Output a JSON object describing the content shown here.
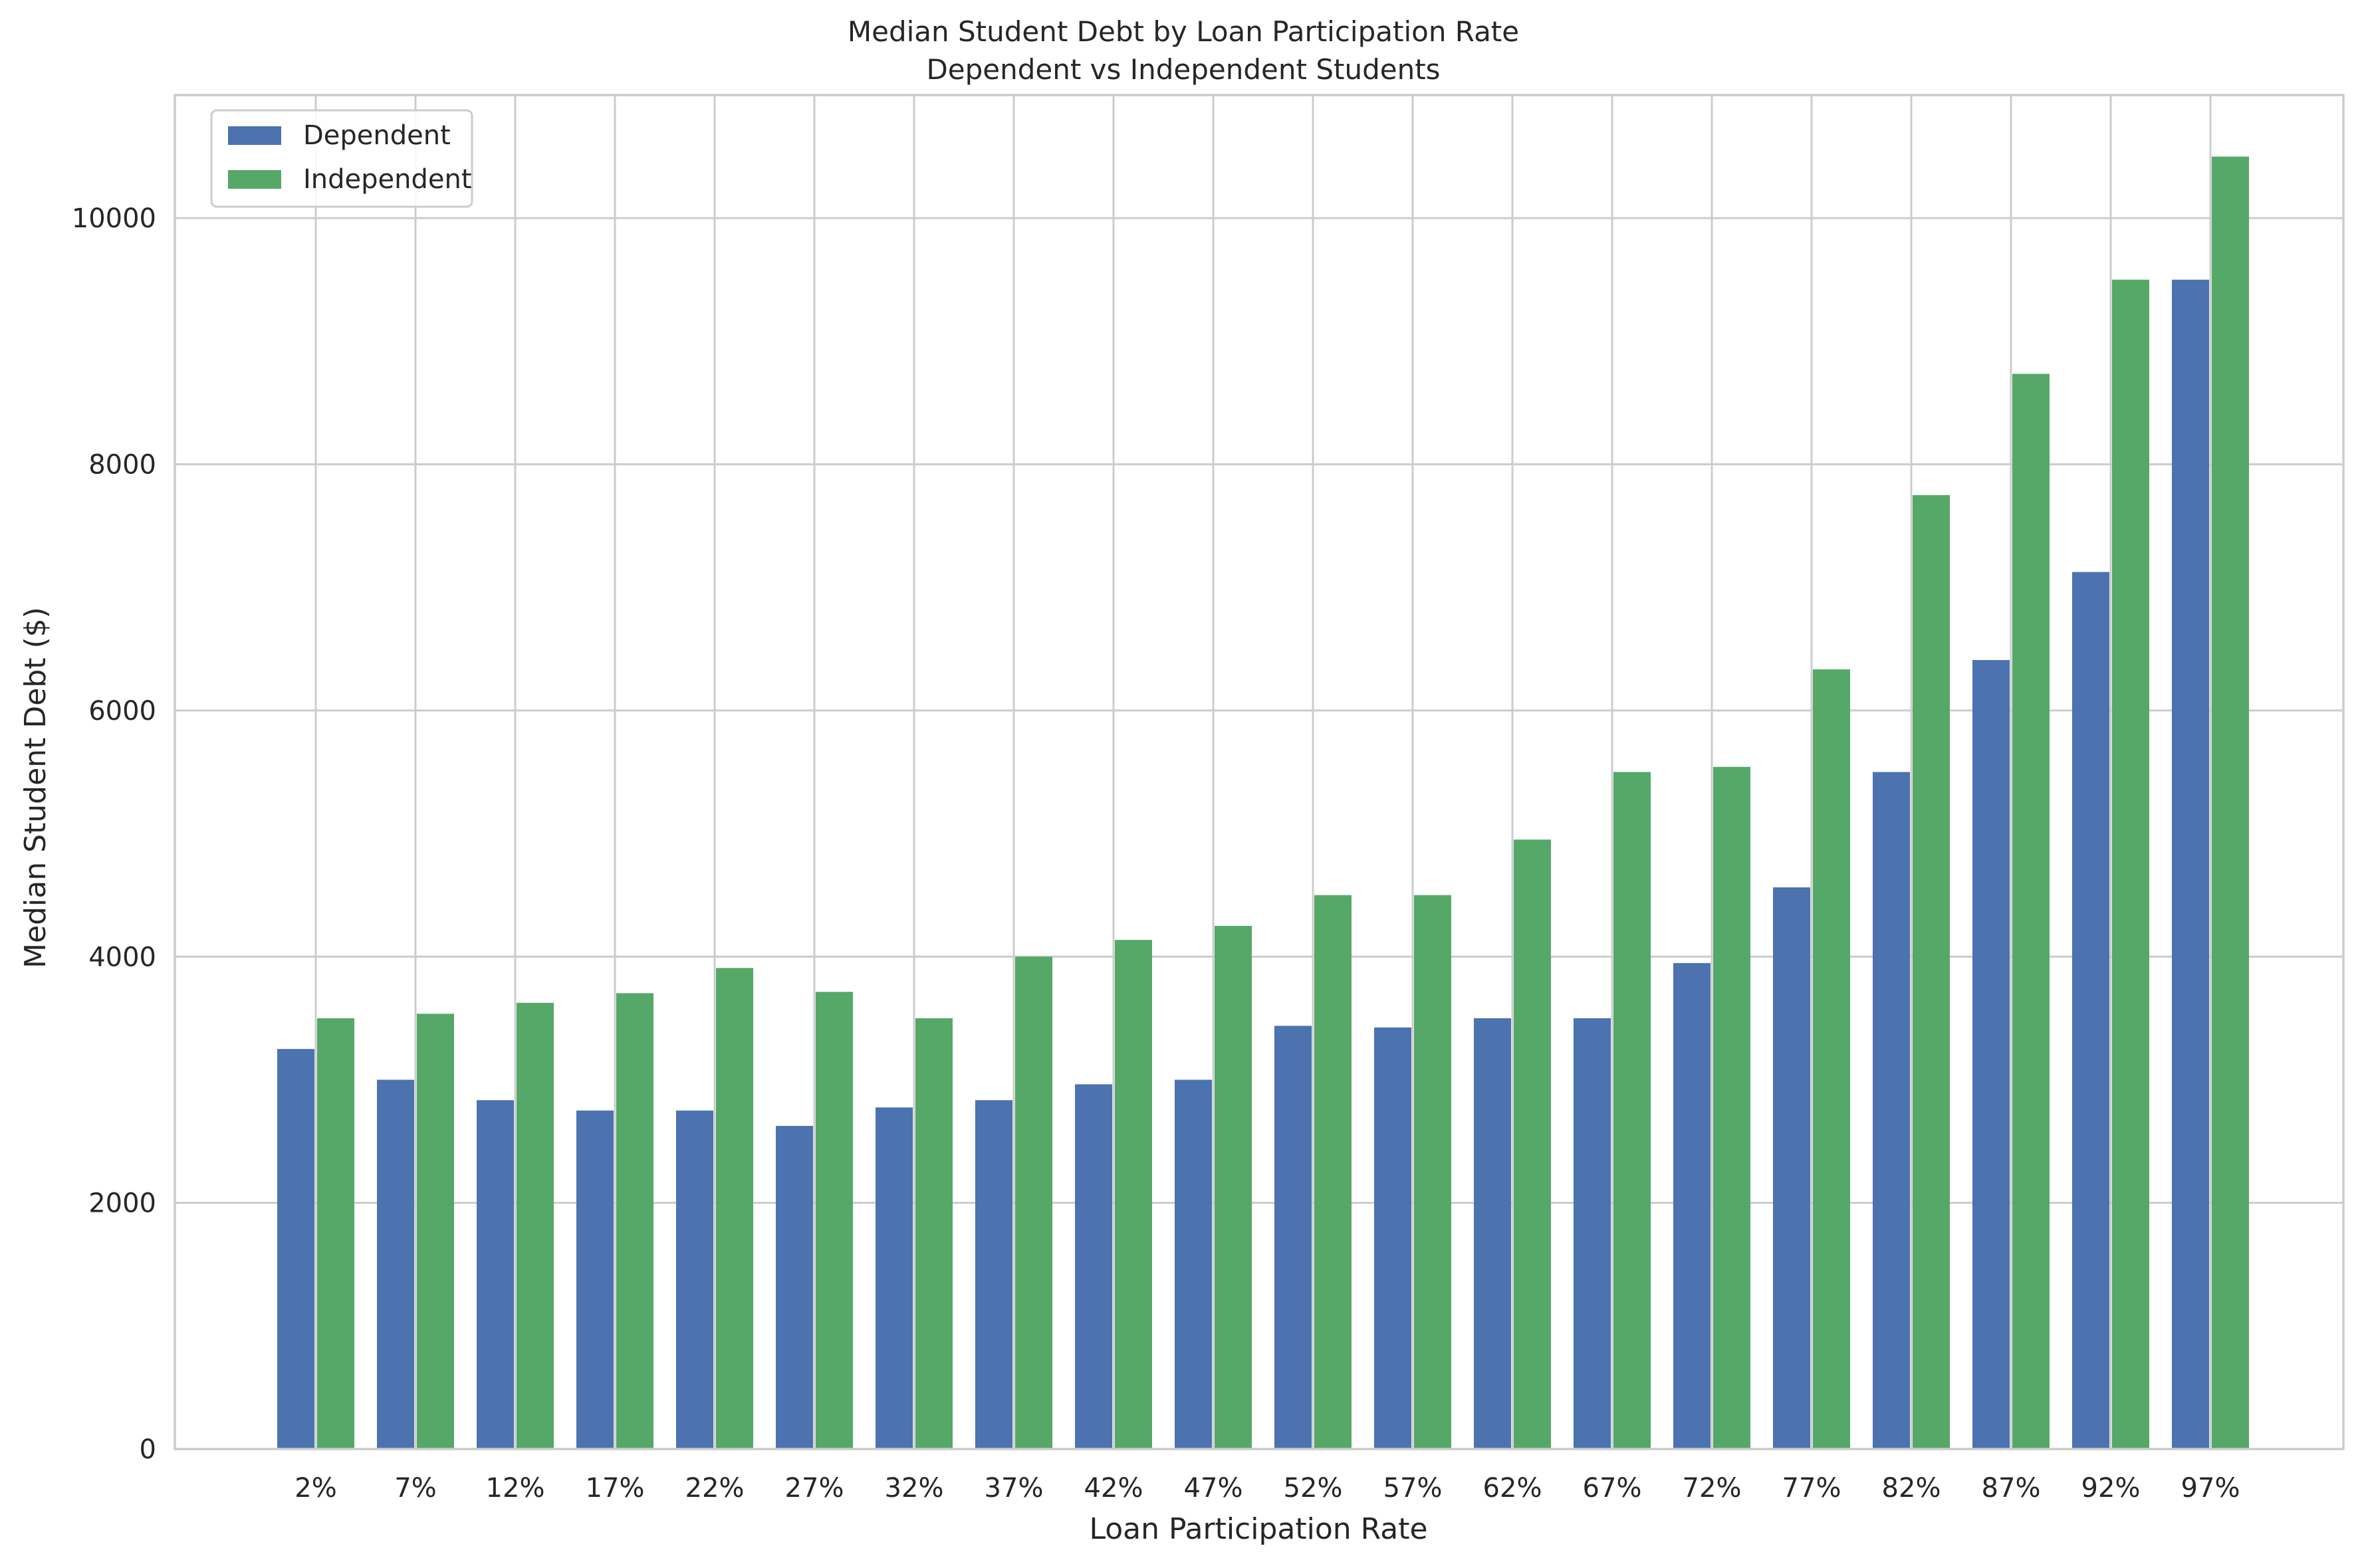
{
  "chart_data": {
    "type": "bar",
    "title": "Median Student Debt by Loan Participation Rate",
    "subtitle": "Dependent vs Independent Students",
    "xlabel": "Loan Participation Rate",
    "ylabel": "Median Student Debt ($)",
    "categories": [
      "2%",
      "7%",
      "12%",
      "17%",
      "22%",
      "27%",
      "32%",
      "37%",
      "42%",
      "47%",
      "52%",
      "57%",
      "62%",
      "67%",
      "72%",
      "77%",
      "82%",
      "87%",
      "92%",
      "97%"
    ],
    "series": [
      {
        "name": "Dependent",
        "color": "#4c72b0",
        "values": [
          3250,
          3000,
          2834,
          2750,
          2750,
          2625,
          2775,
          2834,
          2963,
          3000,
          3438,
          3425,
          3500,
          3500,
          3948,
          4563,
          5500,
          6410,
          7125,
          9500
        ]
      },
      {
        "name": "Independent",
        "color": "#55a868",
        "values": [
          3500,
          3536,
          3625,
          3703,
          3908,
          3714,
          3500,
          4000,
          4136,
          4250,
          4500,
          4500,
          4951,
          5500,
          5542,
          6334,
          7750,
          8735,
          9500,
          10500
        ]
      }
    ],
    "ylim": [
      0,
      11000
    ],
    "yticks": [
      0,
      2000,
      4000,
      6000,
      8000,
      10000
    ],
    "grid": true,
    "legend": "top-left"
  }
}
